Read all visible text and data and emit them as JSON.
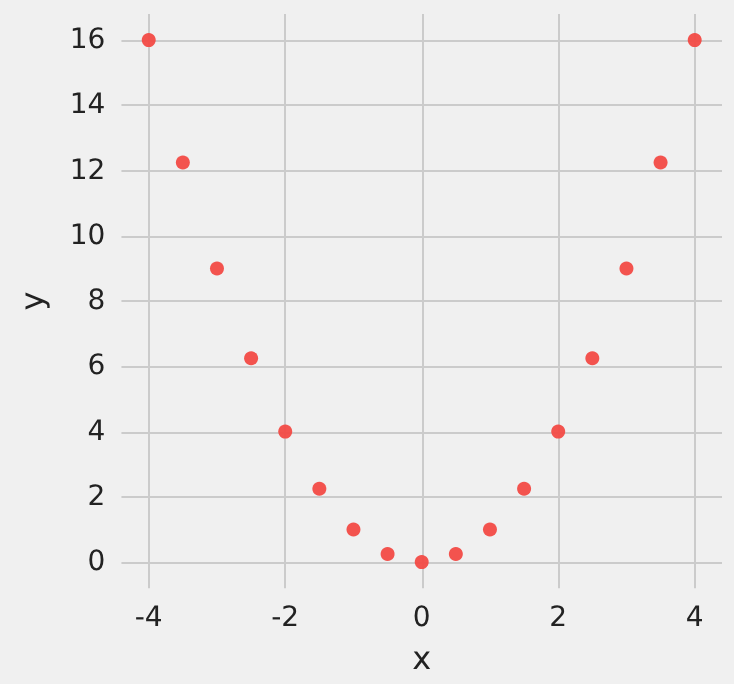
{
  "chart_data": {
    "type": "scatter",
    "xlabel": "x",
    "ylabel": "y",
    "x": [
      -4,
      -3.5,
      -3,
      -2.5,
      -2,
      -1.5,
      -1,
      -0.5,
      0,
      0.5,
      1,
      1.5,
      2,
      2.5,
      3,
      3.5,
      4
    ],
    "values": [
      16,
      12.25,
      9,
      6.25,
      4,
      2.25,
      1,
      0.25,
      0,
      0.25,
      1,
      2.25,
      4,
      6.25,
      9,
      12.25,
      16
    ],
    "color": "#f24a44",
    "marker": "circle",
    "xlim": [
      -4.4,
      4.4
    ],
    "ylim": [
      -0.8,
      16.8
    ],
    "xticks": [
      -4,
      -2,
      0,
      2,
      4
    ],
    "yticks": [
      0,
      2,
      4,
      6,
      8,
      10,
      12,
      14,
      16
    ],
    "grid": true
  }
}
